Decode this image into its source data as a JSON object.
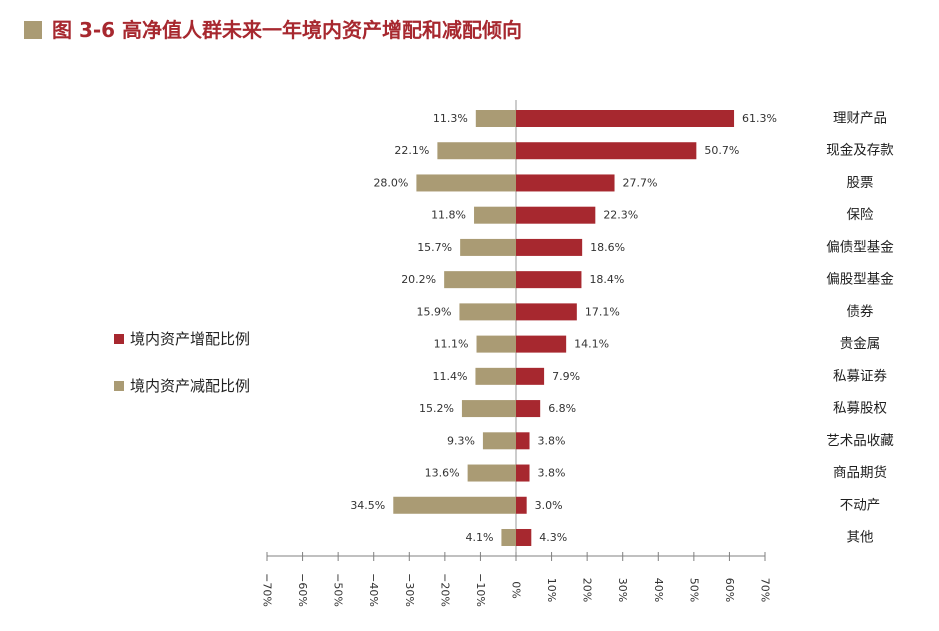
{
  "chart_data": {
    "type": "bar",
    "orientation": "horizontal",
    "title": "图 3-6 高净值人群未来一年境内资产增配和减配倾向",
    "categories": [
      "理财产品",
      "现金及存款",
      "股票",
      "保险",
      "偏债型基金",
      "偏股型基金",
      "债券",
      "贵金属",
      "私募证券",
      "私募股权",
      "艺术品收藏",
      "商品期货",
      "不动产",
      "其他"
    ],
    "series": [
      {
        "name": "境内资产增配比例",
        "color": "#A7282F",
        "values": [
          61.3,
          50.7,
          27.7,
          22.3,
          18.6,
          18.4,
          17.1,
          14.1,
          7.9,
          6.8,
          3.8,
          3.8,
          3.0,
          4.3
        ]
      },
      {
        "name": "境内资产减配比例",
        "color": "#AA9B74",
        "values": [
          -11.3,
          -22.1,
          -28.0,
          -11.8,
          -15.7,
          -20.2,
          -15.9,
          -11.1,
          -11.4,
          -15.2,
          -9.3,
          -13.6,
          -34.5,
          -4.1
        ]
      }
    ],
    "xlim": [
      -70,
      70
    ],
    "xticks": [
      -70,
      -60,
      -50,
      -40,
      -30,
      -20,
      -10,
      0,
      10,
      20,
      30,
      40,
      50,
      60,
      70
    ],
    "xtick_labels": [
      "−70%",
      "−60%",
      "−50%",
      "−40%",
      "−30%",
      "−20%",
      "−10%",
      "0%",
      "10%",
      "20%",
      "30%",
      "40%",
      "50%",
      "60%",
      "70%"
    ],
    "grid": false,
    "legend": "left"
  },
  "colors": {
    "title": "#A7282F",
    "title_marker": "#AA9B74"
  }
}
